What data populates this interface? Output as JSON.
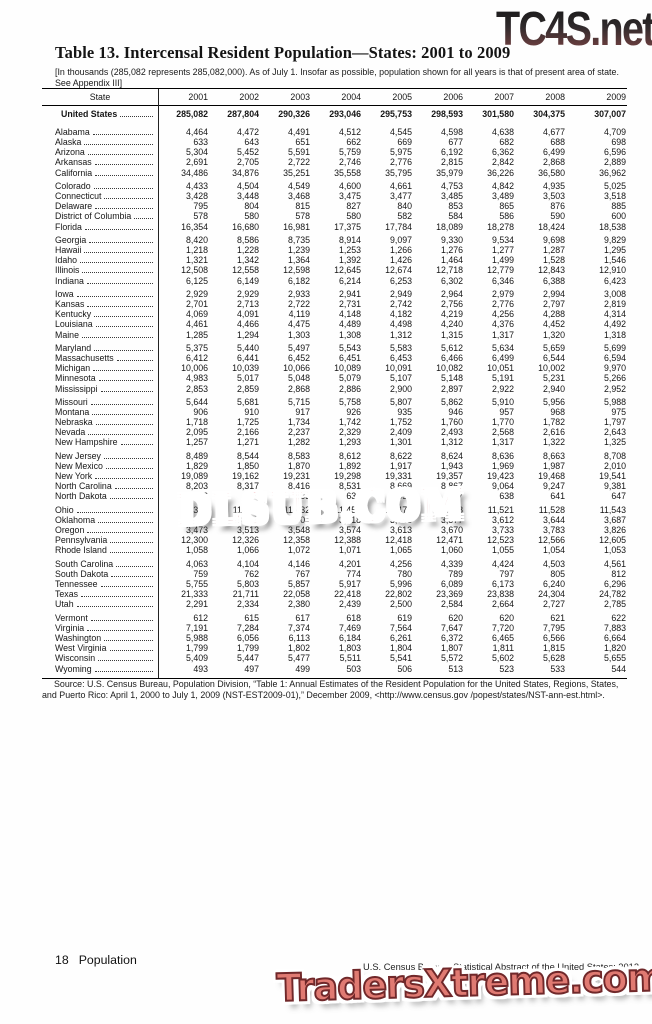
{
  "watermarks": {
    "top": "TC4S.net",
    "middle": "DLSUB.COM",
    "bottom": "TradersXtreme.com"
  },
  "title": "Table 13. Intercensal Resident Population—States: 2001 to 2009",
  "note": "[In thousands (285,082 represents 285,082,000). As of July 1. Insofar as possible, population shown for all years is that of present area of state. See Appendix III]",
  "source": "Source: U.S. Census Bureau, Population Division, “Table 1: Annual Estimates of the Resident Population for the United States, Regions, States, and Puerto Rico: April 1, 2000 to July 1, 2009 (NST-EST2009-01),” December 2009, <http://www.census.gov /popest/states/NST-ann-est.html>.",
  "footer": {
    "page_number": "18",
    "section": "Population",
    "right": "U.S. Census Bureau, Statistical Abstract of the United States: 2012"
  },
  "table": {
    "columns": [
      "State",
      "2001",
      "2002",
      "2003",
      "2004",
      "2005",
      "2006",
      "2007",
      "2008",
      "2009"
    ],
    "total_row": {
      "label": "United States",
      "values": [
        "285,082",
        "287,804",
        "290,326",
        "293,046",
        "295,753",
        "298,593",
        "301,580",
        "304,375",
        "307,007"
      ]
    },
    "groups": [
      [
        {
          "label": "Alabama",
          "values": [
            "4,464",
            "4,472",
            "4,491",
            "4,512",
            "4,545",
            "4,598",
            "4,638",
            "4,677",
            "4,709"
          ]
        },
        {
          "label": "Alaska",
          "values": [
            "633",
            "643",
            "651",
            "662",
            "669",
            "677",
            "682",
            "688",
            "698"
          ]
        },
        {
          "label": "Arizona",
          "values": [
            "5,304",
            "5,452",
            "5,591",
            "5,759",
            "5,975",
            "6,192",
            "6,362",
            "6,499",
            "6,596"
          ]
        },
        {
          "label": "Arkansas",
          "values": [
            "2,691",
            "2,705",
            "2,722",
            "2,746",
            "2,776",
            "2,815",
            "2,842",
            "2,868",
            "2,889"
          ]
        },
        {
          "label": "California",
          "values": [
            "34,486",
            "34,876",
            "35,251",
            "35,558",
            "35,795",
            "35,979",
            "36,226",
            "36,580",
            "36,962"
          ]
        }
      ],
      [
        {
          "label": "Colorado",
          "values": [
            "4,433",
            "4,504",
            "4,549",
            "4,600",
            "4,661",
            "4,753",
            "4,842",
            "4,935",
            "5,025"
          ]
        },
        {
          "label": "Connecticut",
          "values": [
            "3,428",
            "3,448",
            "3,468",
            "3,475",
            "3,477",
            "3,485",
            "3,489",
            "3,503",
            "3,518"
          ]
        },
        {
          "label": "Delaware",
          "values": [
            "795",
            "804",
            "815",
            "827",
            "840",
            "853",
            "865",
            "876",
            "885"
          ]
        },
        {
          "label": "District of Columbia",
          "values": [
            "578",
            "580",
            "578",
            "580",
            "582",
            "584",
            "586",
            "590",
            "600"
          ]
        },
        {
          "label": "Florida",
          "values": [
            "16,354",
            "16,680",
            "16,981",
            "17,375",
            "17,784",
            "18,089",
            "18,278",
            "18,424",
            "18,538"
          ]
        }
      ],
      [
        {
          "label": "Georgia",
          "values": [
            "8,420",
            "8,586",
            "8,735",
            "8,914",
            "9,097",
            "9,330",
            "9,534",
            "9,698",
            "9,829"
          ]
        },
        {
          "label": "Hawaii",
          "values": [
            "1,218",
            "1,228",
            "1,239",
            "1,253",
            "1,266",
            "1,276",
            "1,277",
            "1,287",
            "1,295"
          ]
        },
        {
          "label": "Idaho",
          "values": [
            "1,321",
            "1,342",
            "1,364",
            "1,392",
            "1,426",
            "1,464",
            "1,499",
            "1,528",
            "1,546"
          ]
        },
        {
          "label": "Illinois",
          "values": [
            "12,508",
            "12,558",
            "12,598",
            "12,645",
            "12,674",
            "12,718",
            "12,779",
            "12,843",
            "12,910"
          ]
        },
        {
          "label": "Indiana",
          "values": [
            "6,125",
            "6,149",
            "6,182",
            "6,214",
            "6,253",
            "6,302",
            "6,346",
            "6,388",
            "6,423"
          ]
        }
      ],
      [
        {
          "label": "Iowa",
          "values": [
            "2,929",
            "2,929",
            "2,933",
            "2,941",
            "2,949",
            "2,964",
            "2,979",
            "2,994",
            "3,008"
          ]
        },
        {
          "label": "Kansas",
          "values": [
            "2,701",
            "2,713",
            "2,722",
            "2,731",
            "2,742",
            "2,756",
            "2,776",
            "2,797",
            "2,819"
          ]
        },
        {
          "label": "Kentucky",
          "values": [
            "4,069",
            "4,091",
            "4,119",
            "4,148",
            "4,182",
            "4,219",
            "4,256",
            "4,288",
            "4,314"
          ]
        },
        {
          "label": "Louisiana",
          "values": [
            "4,461",
            "4,466",
            "4,475",
            "4,489",
            "4,498",
            "4,240",
            "4,376",
            "4,452",
            "4,492"
          ]
        },
        {
          "label": "Maine",
          "values": [
            "1,285",
            "1,294",
            "1,303",
            "1,308",
            "1,312",
            "1,315",
            "1,317",
            "1,320",
            "1,318"
          ]
        }
      ],
      [
        {
          "label": "Maryland",
          "values": [
            "5,375",
            "5,440",
            "5,497",
            "5,543",
            "5,583",
            "5,612",
            "5,634",
            "5,659",
            "5,699"
          ]
        },
        {
          "label": "Massachusetts",
          "values": [
            "6,412",
            "6,441",
            "6,452",
            "6,451",
            "6,453",
            "6,466",
            "6,499",
            "6,544",
            "6,594"
          ]
        },
        {
          "label": "Michigan",
          "values": [
            "10,006",
            "10,039",
            "10,066",
            "10,089",
            "10,091",
            "10,082",
            "10,051",
            "10,002",
            "9,970"
          ]
        },
        {
          "label": "Minnesota",
          "values": [
            "4,983",
            "5,017",
            "5,048",
            "5,079",
            "5,107",
            "5,148",
            "5,191",
            "5,231",
            "5,266"
          ]
        },
        {
          "label": "Mississippi",
          "values": [
            "2,853",
            "2,859",
            "2,868",
            "2,886",
            "2,900",
            "2,897",
            "2,922",
            "2,940",
            "2,952"
          ]
        }
      ],
      [
        {
          "label": "Missouri",
          "values": [
            "5,644",
            "5,681",
            "5,715",
            "5,758",
            "5,807",
            "5,862",
            "5,910",
            "5,956",
            "5,988"
          ]
        },
        {
          "label": "Montana",
          "values": [
            "906",
            "910",
            "917",
            "926",
            "935",
            "946",
            "957",
            "968",
            "975"
          ]
        },
        {
          "label": "Nebraska",
          "values": [
            "1,718",
            "1,725",
            "1,734",
            "1,742",
            "1,752",
            "1,760",
            "1,770",
            "1,782",
            "1,797"
          ]
        },
        {
          "label": "Nevada",
          "values": [
            "2,095",
            "2,166",
            "2,237",
            "2,329",
            "2,409",
            "2,493",
            "2,568",
            "2,616",
            "2,643"
          ]
        },
        {
          "label": "New Hampshire",
          "values": [
            "1,257",
            "1,271",
            "1,282",
            "1,293",
            "1,301",
            "1,312",
            "1,317",
            "1,322",
            "1,325"
          ]
        }
      ],
      [
        {
          "label": "New Jersey",
          "values": [
            "8,489",
            "8,544",
            "8,583",
            "8,612",
            "8,622",
            "8,624",
            "8,636",
            "8,663",
            "8,708"
          ]
        },
        {
          "label": "New Mexico",
          "values": [
            "1,829",
            "1,850",
            "1,870",
            "1,892",
            "1,917",
            "1,943",
            "1,969",
            "1,987",
            "2,010"
          ]
        },
        {
          "label": "New York",
          "values": [
            "19,089",
            "19,162",
            "19,231",
            "19,298",
            "19,331",
            "19,357",
            "19,423",
            "19,468",
            "19,541"
          ]
        },
        {
          "label": "North Carolina",
          "values": [
            "8,203",
            "8,317",
            "8,416",
            "8,531",
            "8,669",
            "8,867",
            "9,064",
            "9,247",
            "9,381"
          ]
        },
        {
          "label": "North Dakota",
          "values": [
            "636",
            "634",
            "633",
            "636",
            "635",
            "637",
            "638",
            "641",
            "647"
          ]
        }
      ],
      [
        {
          "label": "Ohio",
          "values": [
            "11,387",
            "11,410",
            "11,432",
            "11,455",
            "11,471",
            "11,498",
            "11,521",
            "11,528",
            "11,543"
          ]
        },
        {
          "label": "Oklahoma",
          "values": [
            "3,467",
            "3,489",
            "3,504",
            "3,518",
            "3,543",
            "3,577",
            "3,612",
            "3,644",
            "3,687"
          ]
        },
        {
          "label": "Oregon",
          "values": [
            "3,473",
            "3,513",
            "3,548",
            "3,574",
            "3,613",
            "3,670",
            "3,733",
            "3,783",
            "3,826"
          ]
        },
        {
          "label": "Pennsylvania",
          "values": [
            "12,300",
            "12,326",
            "12,358",
            "12,388",
            "12,418",
            "12,471",
            "12,523",
            "12,566",
            "12,605"
          ]
        },
        {
          "label": "Rhode Island",
          "values": [
            "1,058",
            "1,066",
            "1,072",
            "1,071",
            "1,065",
            "1,060",
            "1,055",
            "1,054",
            "1,053"
          ]
        }
      ],
      [
        {
          "label": "South Carolina",
          "values": [
            "4,063",
            "4,104",
            "4,146",
            "4,201",
            "4,256",
            "4,339",
            "4,424",
            "4,503",
            "4,561"
          ]
        },
        {
          "label": "South Dakota",
          "values": [
            "759",
            "762",
            "767",
            "774",
            "780",
            "789",
            "797",
            "805",
            "812"
          ]
        },
        {
          "label": "Tennessee",
          "values": [
            "5,755",
            "5,803",
            "5,857",
            "5,917",
            "5,996",
            "6,089",
            "6,173",
            "6,240",
            "6,296"
          ]
        },
        {
          "label": "Texas",
          "values": [
            "21,333",
            "21,711",
            "22,058",
            "22,418",
            "22,802",
            "23,369",
            "23,838",
            "24,304",
            "24,782"
          ]
        },
        {
          "label": "Utah",
          "values": [
            "2,291",
            "2,334",
            "2,380",
            "2,439",
            "2,500",
            "2,584",
            "2,664",
            "2,727",
            "2,785"
          ]
        }
      ],
      [
        {
          "label": "Vermont",
          "values": [
            "612",
            "615",
            "617",
            "618",
            "619",
            "620",
            "620",
            "621",
            "622"
          ]
        },
        {
          "label": "Virginia",
          "values": [
            "7,191",
            "7,284",
            "7,374",
            "7,469",
            "7,564",
            "7,647",
            "7,720",
            "7,795",
            "7,883"
          ]
        },
        {
          "label": "Washington",
          "values": [
            "5,988",
            "6,056",
            "6,113",
            "6,184",
            "6,261",
            "6,372",
            "6,465",
            "6,566",
            "6,664"
          ]
        },
        {
          "label": "West Virginia",
          "values": [
            "1,799",
            "1,799",
            "1,802",
            "1,803",
            "1,804",
            "1,807",
            "1,811",
            "1,815",
            "1,820"
          ]
        },
        {
          "label": "Wisconsin",
          "values": [
            "5,409",
            "5,447",
            "5,477",
            "5,511",
            "5,541",
            "5,572",
            "5,602",
            "5,628",
            "5,655"
          ]
        },
        {
          "label": "Wyoming",
          "values": [
            "493",
            "497",
            "499",
            "503",
            "506",
            "513",
            "523",
            "533",
            "544"
          ]
        }
      ]
    ]
  }
}
